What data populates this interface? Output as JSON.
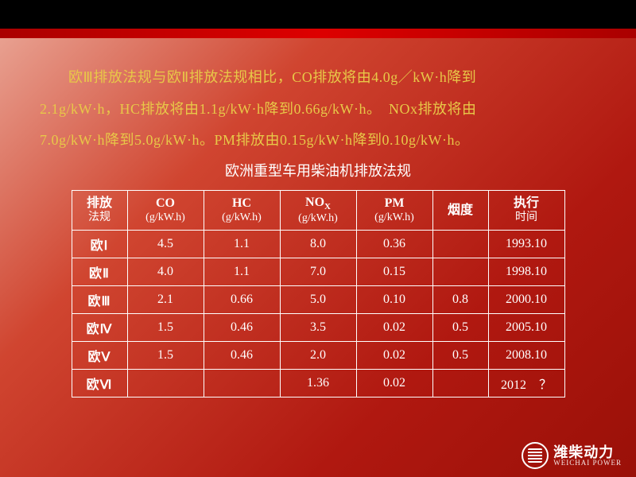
{
  "intro": {
    "line1_prefix": "欧Ⅲ排放法规与欧Ⅱ排放法规相比，CO排放将由4.0g／kW·h降到",
    "line2": "2.1g/kW·h，HC排放将由1.1g/kW·h降到0.66g/kW·h。　NOx排放将由",
    "line3": "7.0g/kW·h降到5.0g/kW·h。PM排放由0.15g/kW·h降到0.10g/kW·h。"
  },
  "subtitle": "欧洲重型车用柴油机排放法规",
  "table": {
    "columns": [
      {
        "label": "排放",
        "sublabel": "法规"
      },
      {
        "label": "CO",
        "sublabel": "(g/kW.h)"
      },
      {
        "label": "HC",
        "sublabel": "(g/kW.h)"
      },
      {
        "label": "NOx_sub",
        "sublabel": "(g/kW.h)"
      },
      {
        "label": "PM",
        "sublabel": "(g/kW.h)"
      },
      {
        "label": "烟度",
        "sublabel": ""
      },
      {
        "label": "执行",
        "sublabel": "时间"
      }
    ],
    "col_widths": [
      "70px",
      "96px",
      "96px",
      "96px",
      "96px",
      "70px",
      "96px"
    ],
    "rows": [
      {
        "name": "欧Ⅰ",
        "co": "4.5",
        "hc": "1.1",
        "nox": "8.0",
        "pm": "0.36",
        "smoke": "",
        "date": "1993.10"
      },
      {
        "name": "欧Ⅱ",
        "co": "4.0",
        "hc": "1.1",
        "nox": "7.0",
        "pm": "0.15",
        "smoke": "",
        "date": "1998.10"
      },
      {
        "name": "欧Ⅲ",
        "co": "2.1",
        "hc": "0.66",
        "nox": "5.0",
        "pm": "0.10",
        "smoke": "0.8",
        "date": "2000.10"
      },
      {
        "name": "欧Ⅳ",
        "co": "1.5",
        "hc": "0.46",
        "nox": "3.5",
        "pm": "0.02",
        "smoke": "0.5",
        "date": "2005.10"
      },
      {
        "name": "欧Ⅴ",
        "co": "1.5",
        "hc": "0.46",
        "nox": "2.0",
        "pm": "0.02",
        "smoke": "0.5",
        "date": "2008.10"
      },
      {
        "name": "欧Ⅵ",
        "co": "",
        "hc": "",
        "nox": "1.36",
        "pm": "0.02",
        "smoke": "",
        "date": "2012　？"
      }
    ]
  },
  "logo": {
    "cn": "潍柴动力",
    "en": "WEICHAI POWER"
  },
  "colors": {
    "intro_text": "#e8c848",
    "table_border": "#ffffff",
    "table_text": "#ffffff",
    "bg_grad_from": "#e8a090",
    "bg_grad_to": "#9a1008"
  }
}
